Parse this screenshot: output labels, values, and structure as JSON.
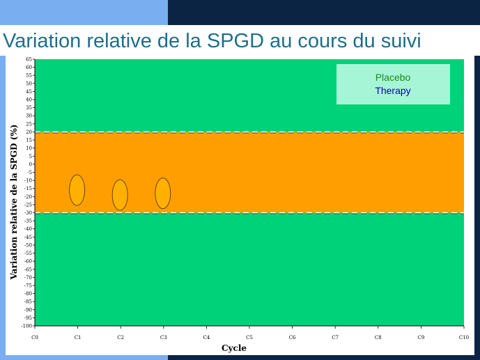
{
  "title": "Variation relative de la SPGD au cours du suivi",
  "colors": {
    "green_zone": "#00d27a",
    "orange_zone": "#ff9e00",
    "placebo": "#1a8a1a",
    "therapy": "#0000cc",
    "legend_bg": "#a6f5d6",
    "ellipse_fill": "#ffb000",
    "ellipse_stroke": "#6b4400"
  },
  "chart_data": {
    "type": "line",
    "title": "",
    "xlabel": "Cycle",
    "ylabel": "Variation relative de la SPGD (%)",
    "categories": [
      "C0",
      "C1",
      "C2",
      "C3",
      "C4",
      "C5",
      "C6",
      "C7",
      "C8",
      "C9",
      "C10"
    ],
    "yticks": [
      65,
      60,
      55,
      50,
      45,
      40,
      35,
      30,
      25,
      20,
      15,
      10,
      5,
      0,
      -5,
      -10,
      -15,
      -20,
      -25,
      -30,
      -35,
      -40,
      -45,
      -50,
      -55,
      -60,
      -65,
      -70,
      -75,
      -80,
      -85,
      -90,
      -95,
      -100
    ],
    "ylim": [
      -100,
      65
    ],
    "thresholds": [
      20,
      -30
    ],
    "zones": [
      {
        "from": 20,
        "to": 65,
        "color": "green"
      },
      {
        "from": -30,
        "to": 20,
        "color": "orange"
      },
      {
        "from": -100,
        "to": -30,
        "color": "green"
      }
    ],
    "series": [
      {
        "name": "Placebo"
      },
      {
        "name": "Therapy"
      }
    ],
    "highlights": [
      {
        "x": 1,
        "y": -16
      },
      {
        "x": 2,
        "y": -19
      },
      {
        "x": 3,
        "y": -18
      }
    ],
    "legend_position": "top-right",
    "grid": false
  }
}
